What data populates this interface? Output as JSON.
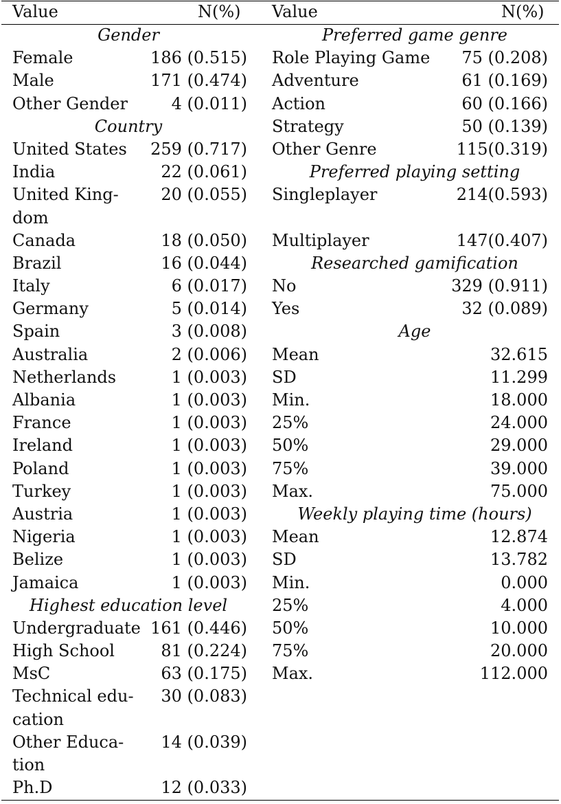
{
  "header": {
    "left_value": "Value",
    "left_n": "N(%)",
    "right_value": "Value",
    "right_n": "N(%)"
  },
  "left": {
    "gender_title": "Gender",
    "gender": [
      {
        "label": "Female",
        "value": "186 (0.515)"
      },
      {
        "label": "Male",
        "value": "171 (0.474)"
      },
      {
        "label": "Other Gender",
        "value": "4 (0.011)"
      }
    ],
    "country_title": "Country",
    "country": [
      {
        "label": "United States",
        "value": "259 (0.717)"
      },
      {
        "label": "India",
        "value": "22 (0.061)"
      },
      {
        "label": "United King-dom",
        "value": "20 (0.055)"
      },
      {
        "label": "Canada",
        "value": "18 (0.050)"
      },
      {
        "label": "Brazil",
        "value": "16 (0.044)"
      },
      {
        "label": "Italy",
        "value": "6 (0.017)"
      },
      {
        "label": "Germany",
        "value": "5 (0.014)"
      },
      {
        "label": "Spain",
        "value": "3 (0.008)"
      },
      {
        "label": "Australia",
        "value": "2 (0.006)"
      },
      {
        "label": "Netherlands",
        "value": "1 (0.003)"
      },
      {
        "label": "Albania",
        "value": "1 (0.003)"
      },
      {
        "label": "France",
        "value": "1 (0.003)"
      },
      {
        "label": "Ireland",
        "value": "1 (0.003)"
      },
      {
        "label": "Poland",
        "value": "1 (0.003)"
      },
      {
        "label": "Turkey",
        "value": "1 (0.003)"
      },
      {
        "label": "Austria",
        "value": "1 (0.003)"
      },
      {
        "label": "Nigeria",
        "value": "1 (0.003)"
      },
      {
        "label": "Belize",
        "value": "1 (0.003)"
      },
      {
        "label": "Jamaica",
        "value": "1 (0.003)"
      }
    ],
    "education_title": "Highest education level",
    "education": [
      {
        "label": "Undergraduate",
        "value": "161 (0.446)"
      },
      {
        "label": "High School",
        "value": "81 (0.224)"
      },
      {
        "label": "MsC",
        "value": "63 (0.175)"
      },
      {
        "label": "Technical edu-cation",
        "value": "30 (0.083)"
      },
      {
        "label": "Other Educa-tion",
        "value": "14 (0.039)"
      },
      {
        "label": "Ph.D",
        "value": "12 (0.033)"
      }
    ]
  },
  "right": {
    "genre_title": "Preferred game genre",
    "genre": [
      {
        "label": "Role Playing Game",
        "value": "75 (0.208)"
      },
      {
        "label": "Adventure",
        "value": "61 (0.169)"
      },
      {
        "label": "Action",
        "value": "60 (0.166)"
      },
      {
        "label": "Strategy",
        "value": "50 (0.139)"
      },
      {
        "label": "Other Genre",
        "value": "115(0.319)"
      }
    ],
    "setting_title": "Preferred playing setting",
    "setting": [
      {
        "label": "Singleplayer",
        "value": "214(0.593)"
      },
      {
        "label": "Multiplayer",
        "value": "147(0.407)"
      }
    ],
    "gamification_title": "Researched gamification",
    "gamification": [
      {
        "label": "No",
        "value": "329 (0.911)"
      },
      {
        "label": "Yes",
        "value": "32 (0.089)"
      }
    ],
    "age_title": "Age",
    "age": [
      {
        "label": "Mean",
        "value": "32.615"
      },
      {
        "label": "SD",
        "value": "11.299"
      },
      {
        "label": "Min.",
        "value": "18.000"
      },
      {
        "label": "25%",
        "value": "24.000"
      },
      {
        "label": "50%",
        "value": "29.000"
      },
      {
        "label": "75%",
        "value": "39.000"
      },
      {
        "label": "Max.",
        "value": "75.000"
      }
    ],
    "weekly_title": "Weekly playing time (hours)",
    "weekly": [
      {
        "label": "Mean",
        "value": "12.874"
      },
      {
        "label": "SD",
        "value": "13.782"
      },
      {
        "label": "Min.",
        "value": "0.000"
      },
      {
        "label": "25%",
        "value": "4.000"
      },
      {
        "label": "50%",
        "value": "10.000"
      },
      {
        "label": "75%",
        "value": "20.000"
      },
      {
        "label": "Max.",
        "value": "112.000"
      }
    ]
  }
}
